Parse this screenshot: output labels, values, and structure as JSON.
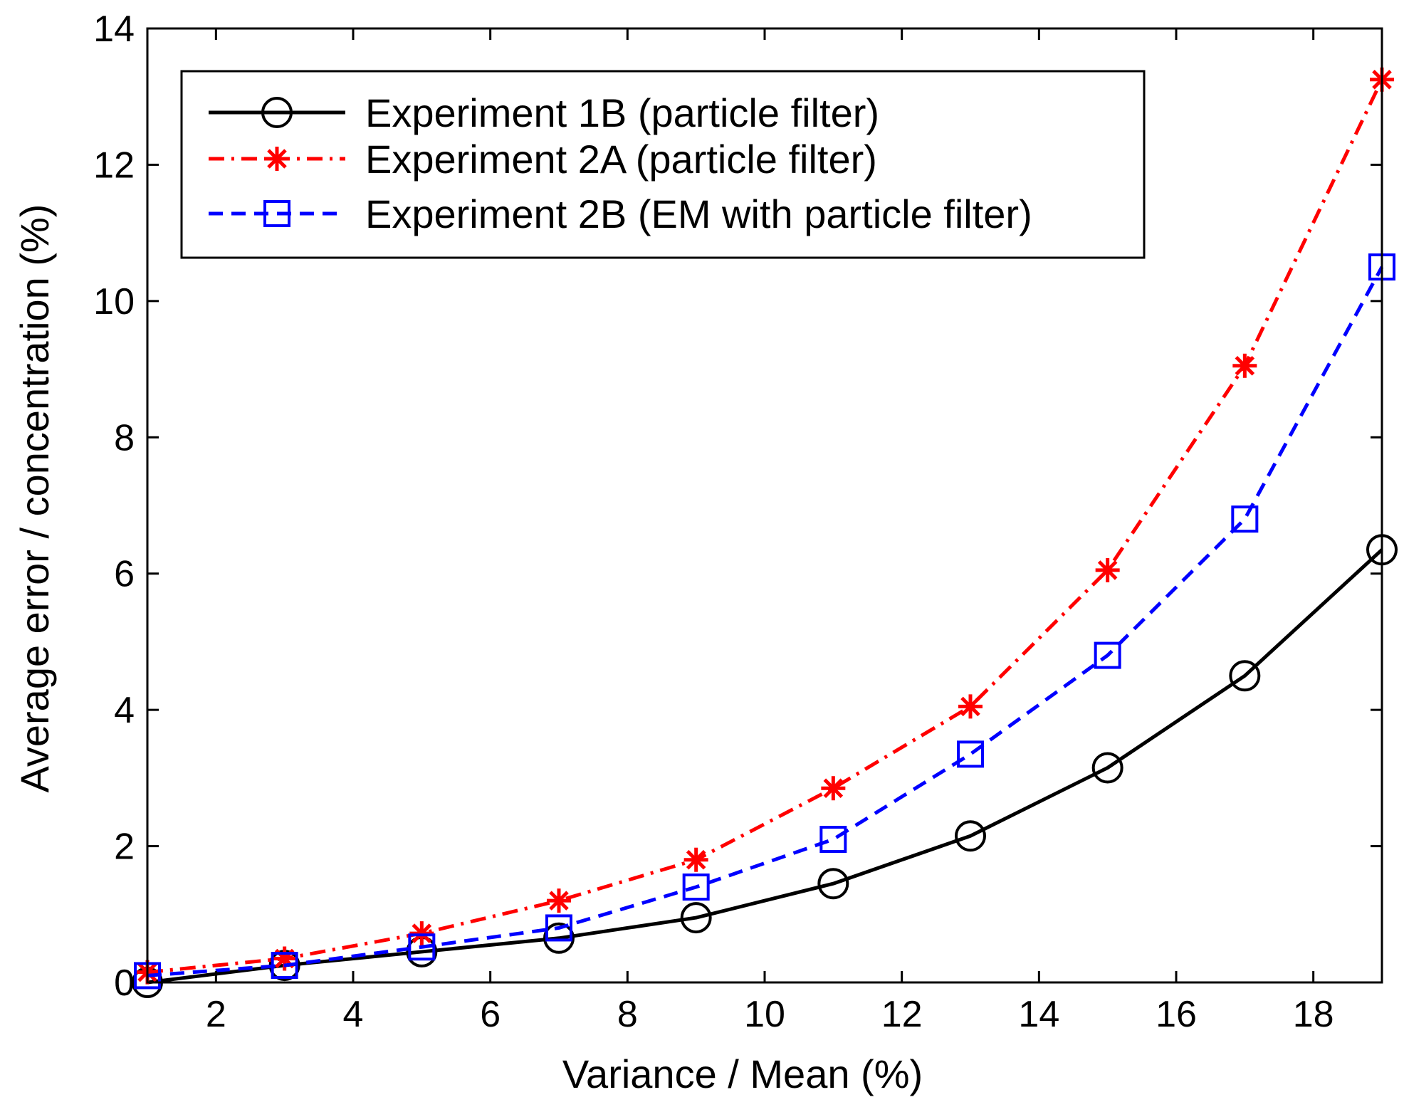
{
  "chart_data": {
    "type": "line",
    "title": "",
    "xlabel": "Variance / Mean (%)",
    "ylabel": "Average error / concentration (%)",
    "xlim": [
      1,
      19
    ],
    "ylim": [
      0,
      14
    ],
    "xticks": [
      2,
      4,
      6,
      8,
      10,
      12,
      14,
      16,
      18
    ],
    "yticks": [
      0,
      2,
      4,
      6,
      8,
      10,
      12,
      14
    ],
    "grid": false,
    "legend_position": "top-left",
    "x": [
      1,
      3,
      5,
      7,
      9,
      11,
      13,
      15,
      17,
      19
    ],
    "series": [
      {
        "name": "Experiment 1B (particle filter)",
        "color": "#000000",
        "line_style": "solid",
        "marker": "circle",
        "values": [
          0.0,
          0.25,
          0.45,
          0.65,
          0.95,
          1.45,
          2.15,
          3.15,
          4.5,
          6.35
        ]
      },
      {
        "name": "Experiment 2A (particle filter)",
        "color": "#ff0000",
        "line_style": "dash-dot",
        "marker": "asterisk",
        "values": [
          0.15,
          0.35,
          0.72,
          1.2,
          1.8,
          2.85,
          4.05,
          6.05,
          9.05,
          13.25
        ]
      },
      {
        "name": "Experiment 2B (EM with particle filter)",
        "color": "#0000ff",
        "line_style": "dashed",
        "marker": "square",
        "values": [
          0.1,
          0.25,
          0.52,
          0.8,
          1.4,
          2.1,
          3.35,
          4.8,
          6.8,
          10.5
        ]
      }
    ]
  }
}
